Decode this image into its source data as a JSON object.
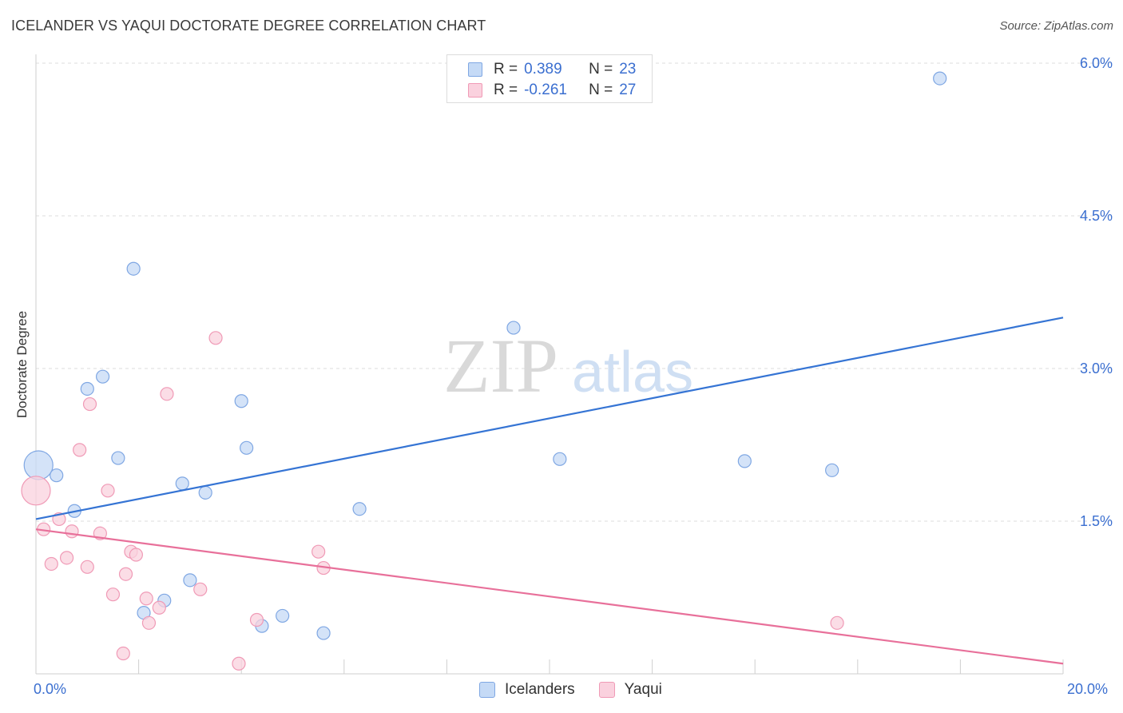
{
  "header": {
    "title": "ICELANDER VS YAQUI DOCTORATE DEGREE CORRELATION CHART",
    "source": "Source: ZipAtlas.com"
  },
  "watermark": {
    "zip": "ZIP",
    "atlas": "atlas"
  },
  "legend_top": {
    "rows": [
      {
        "r_key": "R =",
        "r_value": "0.389",
        "n_key": "N =",
        "n_value": "23",
        "color": "#a9c8f2"
      },
      {
        "r_key": "R =",
        "r_value": "-0.261",
        "n_key": "N =",
        "n_value": "27",
        "color": "#f7b6c9"
      }
    ]
  },
  "legend_bottom": {
    "items": [
      {
        "label": "Icelanders",
        "color": "#a9c8f2"
      },
      {
        "label": "Yaqui",
        "color": "#f7b6c9"
      }
    ]
  },
  "chart_data": {
    "type": "scatter",
    "title": "ICELANDER VS YAQUI DOCTORATE DEGREE CORRELATION CHART",
    "xlabel": "",
    "ylabel": "Doctorate Degree",
    "xlim": [
      0,
      20
    ],
    "ylim": [
      0,
      6.2
    ],
    "x_tick_labels": [
      "0.0%",
      "20.0%"
    ],
    "y_ticks": [
      1.5,
      3.0,
      4.5,
      6.0
    ],
    "y_tick_labels": [
      "1.5%",
      "3.0%",
      "4.5%",
      "6.0%"
    ],
    "grid": true,
    "series": [
      {
        "name": "Icelanders",
        "color": "#3574d4",
        "fill": "#c5daf6",
        "stroke": "#7fa7e3",
        "trend": {
          "x": [
            0,
            20
          ],
          "y": [
            1.52,
            3.5
          ]
        },
        "points": [
          [
            0.05,
            2.05
          ],
          [
            0.4,
            1.95
          ],
          [
            0.75,
            1.6
          ],
          [
            1.0,
            2.8
          ],
          [
            1.3,
            2.92
          ],
          [
            1.6,
            2.12
          ],
          [
            1.9,
            3.98
          ],
          [
            2.1,
            0.6
          ],
          [
            2.5,
            0.72
          ],
          [
            2.85,
            1.87
          ],
          [
            3.0,
            0.92
          ],
          [
            3.3,
            1.78
          ],
          [
            4.0,
            2.68
          ],
          [
            4.1,
            2.22
          ],
          [
            4.4,
            0.47
          ],
          [
            4.8,
            0.57
          ],
          [
            5.6,
            0.4
          ],
          [
            6.3,
            1.62
          ],
          [
            9.3,
            3.4
          ],
          [
            10.2,
            2.11
          ],
          [
            13.8,
            2.09
          ],
          [
            15.5,
            2.0
          ],
          [
            17.6,
            5.85
          ]
        ],
        "big_points": [
          [
            0.05,
            2.05
          ]
        ]
      },
      {
        "name": "Yaqui",
        "color": "#e8709a",
        "fill": "#fad1de",
        "stroke": "#f09ab6",
        "trend": {
          "x": [
            0,
            20
          ],
          "y": [
            1.42,
            0.1
          ]
        },
        "points": [
          [
            0.0,
            1.8
          ],
          [
            0.15,
            1.42
          ],
          [
            0.3,
            1.08
          ],
          [
            0.45,
            1.52
          ],
          [
            0.6,
            1.14
          ],
          [
            0.7,
            1.4
          ],
          [
            0.85,
            2.2
          ],
          [
            1.0,
            1.05
          ],
          [
            1.05,
            2.65
          ],
          [
            1.25,
            1.38
          ],
          [
            1.4,
            1.8
          ],
          [
            1.5,
            0.78
          ],
          [
            1.7,
            0.2
          ],
          [
            1.75,
            0.98
          ],
          [
            1.85,
            1.2
          ],
          [
            1.95,
            1.17
          ],
          [
            2.15,
            0.74
          ],
          [
            2.2,
            0.5
          ],
          [
            2.4,
            0.65
          ],
          [
            2.55,
            2.75
          ],
          [
            3.2,
            0.83
          ],
          [
            3.5,
            3.3
          ],
          [
            3.95,
            0.1
          ],
          [
            4.3,
            0.53
          ],
          [
            5.5,
            1.2
          ],
          [
            5.6,
            1.04
          ],
          [
            15.6,
            0.5
          ]
        ],
        "big_points": [
          [
            0.0,
            1.8
          ]
        ]
      }
    ]
  }
}
